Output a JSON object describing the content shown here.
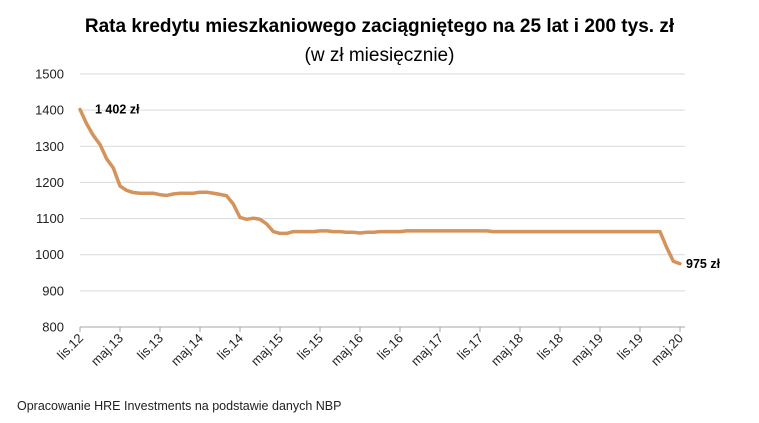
{
  "title": "Rata kredytu mieszkaniowego zaciągniętego na 25 lat i 200 tys. zł",
  "subtitle": "(w zł miesięcznie)",
  "source": "Opracowanie HRE Investments na podstawie danych NBP",
  "colors": {
    "line": "#D4935A",
    "grid": "#D9D9D9",
    "axis": "#A6A6A6"
  },
  "chart_data": {
    "type": "line",
    "title": "Rata kredytu mieszkaniowego zaciągniętego na 25 lat i 200 tys. zł",
    "subtitle": "(w zł miesięcznie)",
    "xlabel": "",
    "ylabel": "",
    "ylim": [
      800,
      1500
    ],
    "yticks": [
      800,
      900,
      1000,
      1100,
      1200,
      1300,
      1400,
      1500
    ],
    "grid": true,
    "xtick_labels": [
      "lis.12",
      "maj.13",
      "lis.13",
      "maj.14",
      "lis.14",
      "maj.15",
      "lis.15",
      "maj.16",
      "lis.16",
      "maj.17",
      "lis.17",
      "maj.18",
      "lis.18",
      "maj.19",
      "lis.19",
      "maj.20"
    ],
    "x": [
      "2012-11",
      "2012-12",
      "2013-01",
      "2013-02",
      "2013-03",
      "2013-04",
      "2013-05",
      "2013-06",
      "2013-07",
      "2013-08",
      "2013-09",
      "2013-10",
      "2013-11",
      "2013-12",
      "2014-01",
      "2014-02",
      "2014-03",
      "2014-04",
      "2014-05",
      "2014-06",
      "2014-07",
      "2014-08",
      "2014-09",
      "2014-10",
      "2014-11",
      "2014-12",
      "2015-01",
      "2015-02",
      "2015-03",
      "2015-04",
      "2015-05",
      "2015-06",
      "2015-07",
      "2015-08",
      "2015-09",
      "2015-10",
      "2015-11",
      "2015-12",
      "2016-01",
      "2016-02",
      "2016-03",
      "2016-04",
      "2016-05",
      "2016-06",
      "2016-07",
      "2016-08",
      "2016-09",
      "2016-10",
      "2016-11",
      "2016-12",
      "2017-01",
      "2017-02",
      "2017-03",
      "2017-04",
      "2017-05",
      "2017-06",
      "2017-07",
      "2017-08",
      "2017-09",
      "2017-10",
      "2017-11",
      "2017-12",
      "2018-01",
      "2018-02",
      "2018-03",
      "2018-04",
      "2018-05",
      "2018-06",
      "2018-07",
      "2018-08",
      "2018-09",
      "2018-10",
      "2018-11",
      "2018-12",
      "2019-01",
      "2019-02",
      "2019-03",
      "2019-04",
      "2019-05",
      "2019-06",
      "2019-07",
      "2019-08",
      "2019-09",
      "2019-10",
      "2019-11",
      "2019-12",
      "2020-01",
      "2020-02",
      "2020-03",
      "2020-04",
      "2020-05"
    ],
    "series": [
      {
        "values": [
          1402,
          1362,
          1330,
          1305,
          1265,
          1240,
          1190,
          1178,
          1172,
          1170,
          1170,
          1170,
          1166,
          1164,
          1168,
          1170,
          1170,
          1170,
          1173,
          1173,
          1170,
          1167,
          1163,
          1140,
          1103,
          1098,
          1101,
          1098,
          1085,
          1064,
          1059,
          1059,
          1064,
          1064,
          1064,
          1064,
          1066,
          1066,
          1064,
          1064,
          1062,
          1062,
          1060,
          1062,
          1062,
          1064,
          1064,
          1064,
          1064,
          1066,
          1066,
          1066,
          1066,
          1066,
          1066,
          1066,
          1066,
          1066,
          1066,
          1066,
          1066,
          1066,
          1064,
          1064,
          1064,
          1064,
          1064,
          1064,
          1064,
          1064,
          1064,
          1064,
          1064,
          1064,
          1064,
          1064,
          1064,
          1064,
          1064,
          1064,
          1064,
          1064,
          1064,
          1064,
          1064,
          1064,
          1064,
          1064,
          1020,
          982,
          975
        ]
      }
    ],
    "annotations": [
      {
        "text": "1 402 zł",
        "x": "2012-11",
        "y": 1402
      },
      {
        "text": "975 zł",
        "x": "2020-05",
        "y": 975
      }
    ]
  }
}
